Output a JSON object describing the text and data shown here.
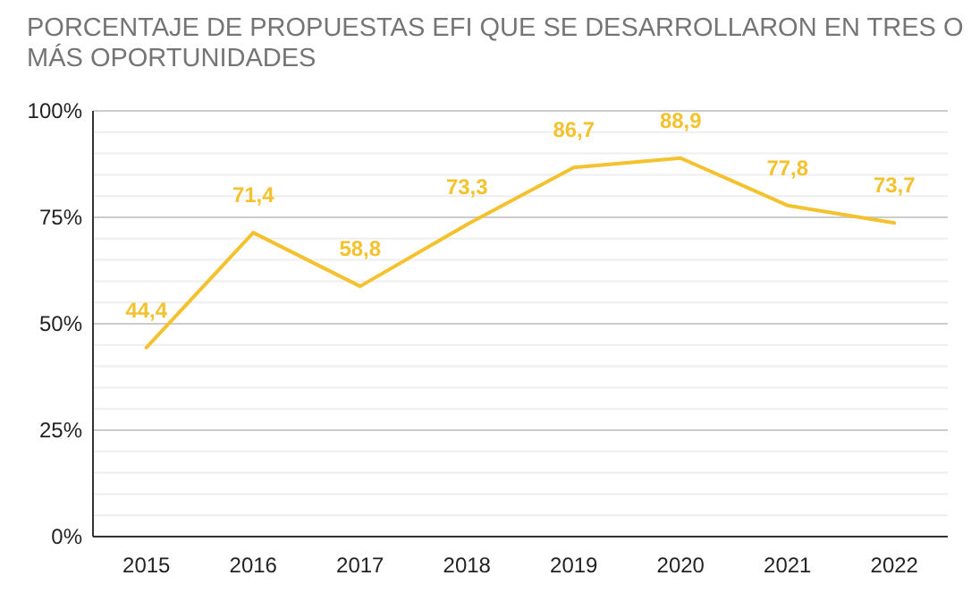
{
  "chart_data": {
    "type": "line",
    "title": "PORCENTAJE DE PROPUESTAS EFI QUE SE DESARROLLARON EN TRES O MÁS OPORTUNIDADES",
    "categories": [
      "2015",
      "2016",
      "2017",
      "2018",
      "2019",
      "2020",
      "2021",
      "2022"
    ],
    "series": [
      {
        "color": "#f4c22f",
        "values": [
          44.4,
          71.4,
          58.8,
          73.3,
          86.7,
          88.9,
          77.8,
          73.7
        ],
        "value_labels": [
          "44,4",
          "71,4",
          "58,8",
          "73,3",
          "86,7",
          "88,9",
          "77,8",
          "73,7"
        ]
      }
    ],
    "ylim": [
      0,
      100
    ],
    "yticks": [
      {
        "value": 0,
        "label": "0%"
      },
      {
        "value": 5,
        "label": null
      },
      {
        "value": 10,
        "label": null
      },
      {
        "value": 15,
        "label": null
      },
      {
        "value": 20,
        "label": null
      },
      {
        "value": 25,
        "label": "25%"
      },
      {
        "value": 30,
        "label": null
      },
      {
        "value": 35,
        "label": null
      },
      {
        "value": 40,
        "label": null
      },
      {
        "value": 45,
        "label": null
      },
      {
        "value": 50,
        "label": "50%"
      },
      {
        "value": 55,
        "label": null
      },
      {
        "value": 60,
        "label": null
      },
      {
        "value": 65,
        "label": null
      },
      {
        "value": 70,
        "label": null
      },
      {
        "value": 75,
        "label": "75%"
      },
      {
        "value": 80,
        "label": null
      },
      {
        "value": 85,
        "label": null
      },
      {
        "value": 90,
        "label": null
      },
      {
        "value": 95,
        "label": null
      },
      {
        "value": 100,
        "label": "100%"
      }
    ],
    "grid": true,
    "marker": "none",
    "line_style": "solid"
  }
}
